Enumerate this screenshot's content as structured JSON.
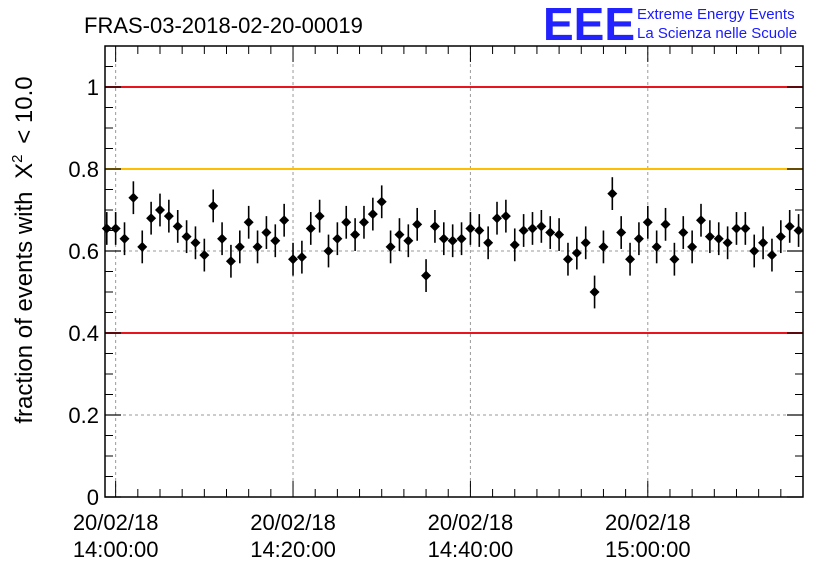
{
  "chart_data": {
    "type": "scatter",
    "title": "FRAS-03-2018-02-20-00019",
    "ylabel_prefix": "fraction of events with",
    "ylabel_symbol": "X",
    "ylabel_sup": "2",
    "ylabel_suffix": "< 10.0",
    "ylim": [
      0,
      1.1
    ],
    "yticks": [
      {
        "value": 0,
        "label": "0"
      },
      {
        "value": 0.2,
        "label": "0.2"
      },
      {
        "value": 0.4,
        "label": "0.4"
      },
      {
        "value": 0.6,
        "label": "0.6"
      },
      {
        "value": 0.8,
        "label": "0.8"
      },
      {
        "value": 1.0,
        "label": "1"
      }
    ],
    "xlim_minutes": [
      -1.2,
      77.5
    ],
    "xticks": [
      {
        "minute": 0,
        "date": "20/02/18",
        "time": "14:00:00"
      },
      {
        "minute": 20,
        "date": "20/02/18",
        "time": "14:20:00"
      },
      {
        "minute": 40,
        "date": "20/02/18",
        "time": "14:40:00"
      },
      {
        "minute": 60,
        "date": "20/02/18",
        "time": "15:00:00"
      }
    ],
    "grid": true,
    "reference_lines": [
      {
        "value": 1.0,
        "color": "#e8141e"
      },
      {
        "value": 0.8,
        "color": "#ffbf00"
      },
      {
        "value": 0.4,
        "color": "#e8141e"
      }
    ],
    "error_bar": 0.04,
    "points": [
      {
        "x": -1.0,
        "y": 0.655
      },
      {
        "x": 0.0,
        "y": 0.655
      },
      {
        "x": 1.0,
        "y": 0.63
      },
      {
        "x": 2.0,
        "y": 0.73
      },
      {
        "x": 3.0,
        "y": 0.61
      },
      {
        "x": 4.0,
        "y": 0.68
      },
      {
        "x": 5.0,
        "y": 0.7
      },
      {
        "x": 6.0,
        "y": 0.685
      },
      {
        "x": 7.0,
        "y": 0.66
      },
      {
        "x": 8.0,
        "y": 0.635
      },
      {
        "x": 9.0,
        "y": 0.62
      },
      {
        "x": 10.0,
        "y": 0.59
      },
      {
        "x": 11.0,
        "y": 0.71
      },
      {
        "x": 12.0,
        "y": 0.63
      },
      {
        "x": 13.0,
        "y": 0.575
      },
      {
        "x": 14.0,
        "y": 0.61
      },
      {
        "x": 15.0,
        "y": 0.67
      },
      {
        "x": 16.0,
        "y": 0.61
      },
      {
        "x": 17.0,
        "y": 0.645
      },
      {
        "x": 18.0,
        "y": 0.625
      },
      {
        "x": 19.0,
        "y": 0.675
      },
      {
        "x": 20.0,
        "y": 0.58
      },
      {
        "x": 21.0,
        "y": 0.585
      },
      {
        "x": 22.0,
        "y": 0.655
      },
      {
        "x": 23.0,
        "y": 0.685
      },
      {
        "x": 24.0,
        "y": 0.6
      },
      {
        "x": 25.0,
        "y": 0.63
      },
      {
        "x": 26.0,
        "y": 0.67
      },
      {
        "x": 27.0,
        "y": 0.64
      },
      {
        "x": 28.0,
        "y": 0.67
      },
      {
        "x": 29.0,
        "y": 0.69
      },
      {
        "x": 30.0,
        "y": 0.72
      },
      {
        "x": 31.0,
        "y": 0.61
      },
      {
        "x": 32.0,
        "y": 0.64
      },
      {
        "x": 33.0,
        "y": 0.625
      },
      {
        "x": 34.0,
        "y": 0.665
      },
      {
        "x": 35.0,
        "y": 0.54
      },
      {
        "x": 36.0,
        "y": 0.66
      },
      {
        "x": 37.0,
        "y": 0.63
      },
      {
        "x": 38.0,
        "y": 0.625
      },
      {
        "x": 39.0,
        "y": 0.63
      },
      {
        "x": 40.0,
        "y": 0.655
      },
      {
        "x": 41.0,
        "y": 0.65
      },
      {
        "x": 42.0,
        "y": 0.62
      },
      {
        "x": 43.0,
        "y": 0.68
      },
      {
        "x": 44.0,
        "y": 0.685
      },
      {
        "x": 45.0,
        "y": 0.615
      },
      {
        "x": 46.0,
        "y": 0.65
      },
      {
        "x": 47.0,
        "y": 0.655
      },
      {
        "x": 48.0,
        "y": 0.66
      },
      {
        "x": 49.0,
        "y": 0.645
      },
      {
        "x": 50.0,
        "y": 0.64
      },
      {
        "x": 51.0,
        "y": 0.58
      },
      {
        "x": 52.0,
        "y": 0.595
      },
      {
        "x": 53.0,
        "y": 0.62
      },
      {
        "x": 54.0,
        "y": 0.5
      },
      {
        "x": 55.0,
        "y": 0.61
      },
      {
        "x": 56.0,
        "y": 0.74
      },
      {
        "x": 57.0,
        "y": 0.645
      },
      {
        "x": 58.0,
        "y": 0.58
      },
      {
        "x": 59.0,
        "y": 0.63
      },
      {
        "x": 60.0,
        "y": 0.67
      },
      {
        "x": 61.0,
        "y": 0.61
      },
      {
        "x": 62.0,
        "y": 0.665
      },
      {
        "x": 63.0,
        "y": 0.58
      },
      {
        "x": 64.0,
        "y": 0.645
      },
      {
        "x": 65.0,
        "y": 0.61
      },
      {
        "x": 66.0,
        "y": 0.675
      },
      {
        "x": 67.0,
        "y": 0.635
      },
      {
        "x": 68.0,
        "y": 0.63
      },
      {
        "x": 69.0,
        "y": 0.62
      },
      {
        "x": 70.0,
        "y": 0.655
      },
      {
        "x": 71.0,
        "y": 0.655
      },
      {
        "x": 72.0,
        "y": 0.6
      },
      {
        "x": 73.0,
        "y": 0.62
      },
      {
        "x": 74.0,
        "y": 0.59
      },
      {
        "x": 75.0,
        "y": 0.635
      },
      {
        "x": 76.0,
        "y": 0.66
      },
      {
        "x": 77.0,
        "y": 0.65
      }
    ]
  },
  "logo": {
    "letters": "EEE",
    "line1": "Extreme Energy Events",
    "line2": "La Scienza nelle Scuole",
    "color": "#1a1aff"
  }
}
